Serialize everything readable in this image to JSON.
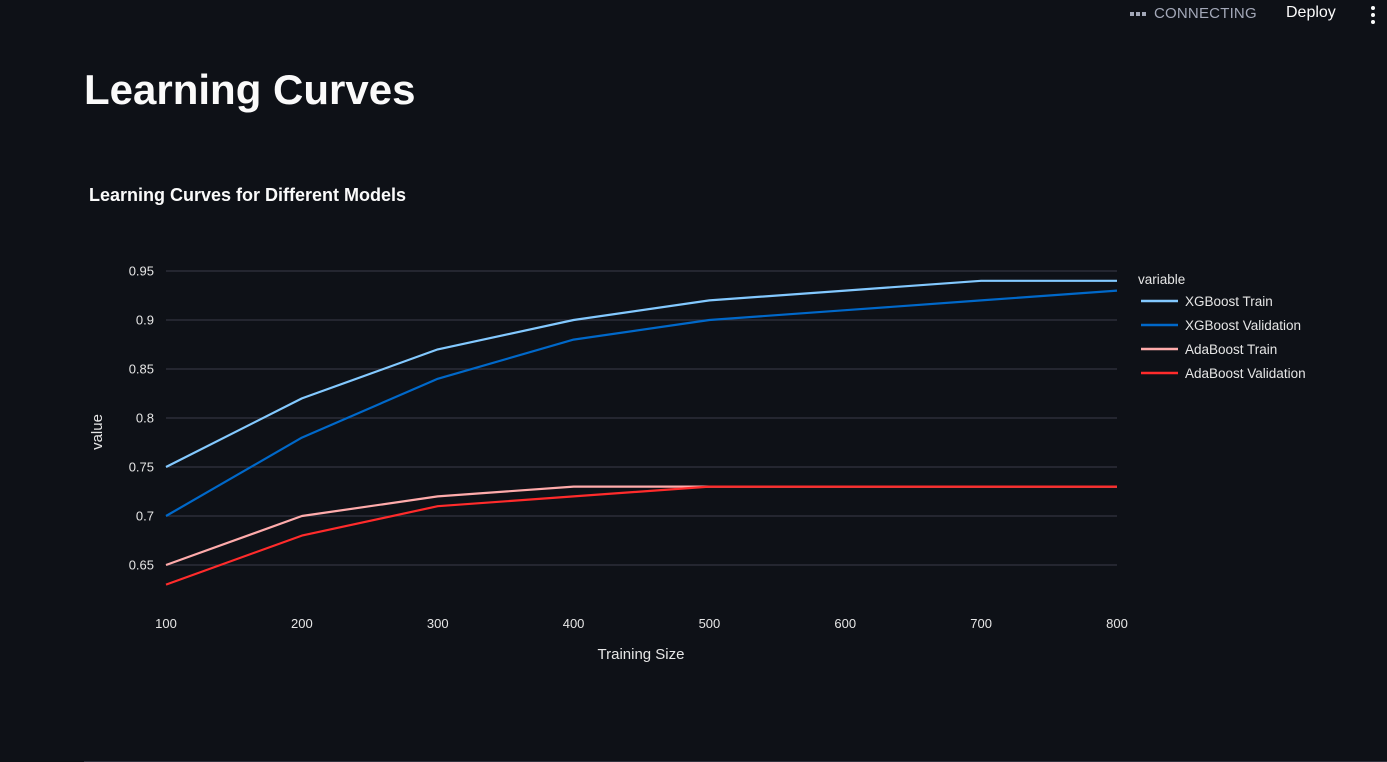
{
  "header": {
    "status_text": "CONNECTING",
    "deploy_label": "Deploy",
    "menu_icon": "vertical-dots-icon"
  },
  "page": {
    "title": "Learning Curves"
  },
  "chart_data": {
    "type": "line",
    "title": "Learning Curves for Different Models",
    "xlabel": "Training Size",
    "ylabel": "value",
    "legend_title": "variable",
    "legend_position": "right",
    "grid": true,
    "x": [
      100,
      200,
      300,
      400,
      500,
      600,
      700,
      800
    ],
    "xlim": [
      100,
      800
    ],
    "ylim": [
      0.6,
      0.96
    ],
    "x_ticks": [
      100,
      200,
      300,
      400,
      500,
      600,
      700,
      800
    ],
    "y_ticks": [
      0.65,
      0.7,
      0.75,
      0.8,
      0.85,
      0.9,
      0.95
    ],
    "y_tick_labels": [
      "0.65",
      "0.7",
      "0.75",
      "0.8",
      "0.85",
      "0.9",
      "0.95"
    ],
    "series": [
      {
        "name": "XGBoost Train",
        "color": "#83c9ff",
        "values": [
          0.75,
          0.82,
          0.87,
          0.9,
          0.92,
          0.93,
          0.94,
          0.94
        ]
      },
      {
        "name": "XGBoost Validation",
        "color": "#0068c9",
        "values": [
          0.7,
          0.78,
          0.84,
          0.88,
          0.9,
          0.91,
          0.92,
          0.93
        ]
      },
      {
        "name": "AdaBoost Train",
        "color": "#ffabab",
        "values": [
          0.65,
          0.7,
          0.72,
          0.73,
          0.73,
          0.73,
          0.73,
          0.73
        ]
      },
      {
        "name": "AdaBoost Validation",
        "color": "#ff2b2b",
        "values": [
          0.63,
          0.68,
          0.71,
          0.72,
          0.73,
          0.73,
          0.73,
          0.73
        ]
      }
    ]
  }
}
